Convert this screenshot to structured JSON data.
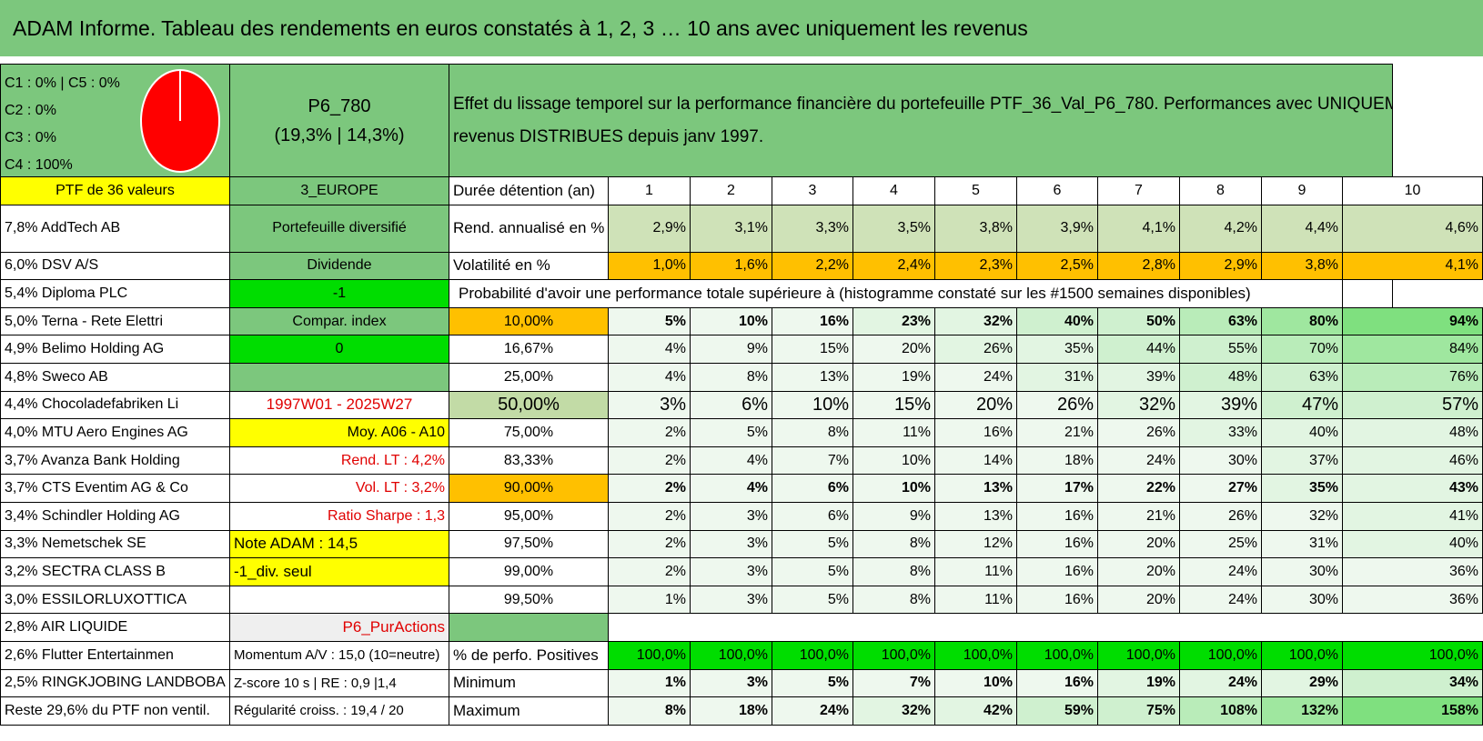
{
  "title": "ADAM Informe. Tableau des rendements en euros constatés à 1, 2, 3 … 10 ans avec uniquement les revenus",
  "colors": {
    "green": "#7cc77d",
    "yellow": "#ffff00",
    "bright_green": "#00dd00",
    "orange": "#ffc000",
    "red_text": "#e00000"
  },
  "top": {
    "categories": [
      "C1 : 0% | C5 : 0%",
      "C2 : 0%",
      "C3 : 0%",
      "C4 : 100%"
    ],
    "pie": {
      "type": "pie",
      "slices": [
        {
          "label": "C4",
          "value": 100,
          "color": "#ff0000"
        }
      ]
    },
    "portfolio_name": "P6_780",
    "portfolio_perf": "(19,3% | 14,3%)",
    "description_line1": "Effet du lissage temporel sur la performance financière du portefeuille PTF_36_Val_P6_780. Performances avec UNIQUEMENT les",
    "description_line2": "revenus DISTRIBUES depuis janv 1997."
  },
  "header_row": {
    "ptf_label": "PTF de 36 valeurs",
    "zone": "3_EUROPE",
    "duration_label": "Durée détention (an)",
    "years": [
      "1",
      "2",
      "3",
      "4",
      "5",
      "6",
      "7",
      "8",
      "9",
      "10"
    ]
  },
  "holdings": [
    "7,8% AddTech AB",
    "6,0% DSV A/S",
    "5,4% Diploma PLC",
    "5,0% Terna - Rete Elettri",
    "4,9% Belimo Holding AG",
    "4,8% Sweco AB",
    "4,4% Chocoladefabriken Li",
    "4,0% MTU Aero Engines AG",
    "3,7% Avanza Bank Holding",
    "3,7% CTS Eventim AG & Co",
    "3,4% Schindler Holding AG",
    "3,3% Nemetschek SE",
    "3,2% SECTRA CLASS B",
    "3,0% ESSILORLUXOTTICA",
    "2,8% AIR LIQUIDE",
    "2,6% Flutter Entertainmen",
    "2,5% RINGKJOBING LANDBOBA",
    "Reste 29,6% du PTF non ventil."
  ],
  "info": {
    "diversified": "Portefeuille diversifié",
    "dividend": "Dividende",
    "minus1": "-1",
    "compar": "Compar. index",
    "zero": "0",
    "empty": "",
    "period": "1997W01 - 2025W27",
    "moy": "Moy. A06 - A10",
    "rend_lt": "Rend. LT : 4,2%",
    "vol_lt": "Vol. LT : 3,2%",
    "sharpe": "Ratio Sharpe : 1,3",
    "note": "Note ADAM : 14,5",
    "div_seul": "-1_div. seul",
    "blank": "",
    "pur": "P6_PurActions",
    "momentum": "Momentum A/V : 15,0 (10=neutre)",
    "zscore": "Z-score 10 s | RE : 0,9 |1,4",
    "regularite": "Régularité croiss. : 19,4 / 20"
  },
  "rend_row": {
    "label": "Rend. annualisé en %",
    "values": [
      "2,9%",
      "3,1%",
      "3,3%",
      "3,5%",
      "3,8%",
      "3,9%",
      "4,1%",
      "4,2%",
      "4,4%",
      "4,6%"
    ]
  },
  "vol_row": {
    "label": "Volatilité en %",
    "values": [
      "1,0%",
      "1,6%",
      "2,2%",
      "2,4%",
      "2,3%",
      "2,5%",
      "2,8%",
      "2,9%",
      "3,8%",
      "4,1%"
    ]
  },
  "prob_title": "Probabilité d'avoir une performance totale supérieure à (histogramme constaté sur les #1500 semaines disponibles)",
  "prob_rows": [
    {
      "p": "10,00%",
      "values": [
        "5%",
        "10%",
        "16%",
        "23%",
        "32%",
        "40%",
        "50%",
        "63%",
        "80%",
        "94%"
      ]
    },
    {
      "p": "16,67%",
      "values": [
        "4%",
        "9%",
        "15%",
        "20%",
        "26%",
        "35%",
        "44%",
        "55%",
        "70%",
        "84%"
      ]
    },
    {
      "p": "25,00%",
      "values": [
        "4%",
        "8%",
        "13%",
        "19%",
        "24%",
        "31%",
        "39%",
        "48%",
        "63%",
        "76%"
      ]
    },
    {
      "p": "50,00%",
      "values": [
        "3%",
        "6%",
        "10%",
        "15%",
        "20%",
        "26%",
        "32%",
        "39%",
        "47%",
        "57%"
      ]
    },
    {
      "p": "75,00%",
      "values": [
        "2%",
        "5%",
        "8%",
        "11%",
        "16%",
        "21%",
        "26%",
        "33%",
        "40%",
        "48%"
      ]
    },
    {
      "p": "83,33%",
      "values": [
        "2%",
        "4%",
        "7%",
        "10%",
        "14%",
        "18%",
        "24%",
        "30%",
        "37%",
        "46%"
      ]
    },
    {
      "p": "90,00%",
      "values": [
        "2%",
        "4%",
        "6%",
        "10%",
        "13%",
        "17%",
        "22%",
        "27%",
        "35%",
        "43%"
      ]
    },
    {
      "p": "95,00%",
      "values": [
        "2%",
        "3%",
        "6%",
        "9%",
        "13%",
        "16%",
        "21%",
        "26%",
        "32%",
        "41%"
      ]
    },
    {
      "p": "97,50%",
      "values": [
        "2%",
        "3%",
        "5%",
        "8%",
        "12%",
        "16%",
        "20%",
        "25%",
        "31%",
        "40%"
      ]
    },
    {
      "p": "99,00%",
      "values": [
        "2%",
        "3%",
        "5%",
        "8%",
        "11%",
        "16%",
        "20%",
        "24%",
        "30%",
        "36%"
      ]
    },
    {
      "p": "99,50%",
      "values": [
        "1%",
        "3%",
        "5%",
        "8%",
        "11%",
        "16%",
        "20%",
        "24%",
        "30%",
        "36%"
      ]
    }
  ],
  "pos_row": {
    "label": "% de perfo. Positives",
    "values": [
      "100,0%",
      "100,0%",
      "100,0%",
      "100,0%",
      "100,0%",
      "100,0%",
      "100,0%",
      "100,0%",
      "100,0%",
      "100,0%"
    ]
  },
  "min_row": {
    "label": "Minimum",
    "values": [
      "1%",
      "3%",
      "5%",
      "7%",
      "10%",
      "16%",
      "19%",
      "24%",
      "29%",
      "34%"
    ]
  },
  "max_row": {
    "label": "Maximum",
    "values": [
      "8%",
      "18%",
      "24%",
      "32%",
      "42%",
      "59%",
      "75%",
      "108%",
      "132%",
      "158%"
    ]
  }
}
